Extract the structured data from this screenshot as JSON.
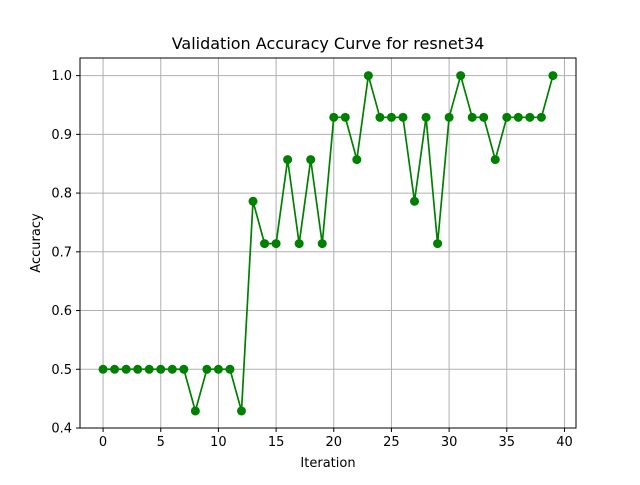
{
  "chart_data": {
    "type": "line",
    "title": "Validation Accuracy Curve for resnet34",
    "xlabel": "Iteration",
    "ylabel": "Accuracy",
    "xlim": [
      -2.0,
      41.0
    ],
    "ylim": [
      0.4,
      1.03
    ],
    "xticks": [
      0,
      5,
      10,
      15,
      20,
      25,
      30,
      35,
      40
    ],
    "yticks": [
      0.4,
      0.5,
      0.6,
      0.7,
      0.8,
      0.9,
      1.0
    ],
    "xtick_labels": [
      "0",
      "5",
      "10",
      "15",
      "20",
      "25",
      "30",
      "35",
      "40"
    ],
    "ytick_labels": [
      "0.4",
      "0.5",
      "0.6",
      "0.7",
      "0.8",
      "0.9",
      "1.0"
    ],
    "grid": true,
    "marker": "circle",
    "color": "#008000",
    "series": [
      {
        "x": [
          0,
          1,
          2,
          3,
          4,
          5,
          6,
          7,
          8,
          9,
          10,
          11,
          12,
          13,
          14,
          15,
          16,
          17,
          18,
          19,
          20,
          21,
          22,
          23,
          24,
          25,
          26,
          27,
          28,
          29,
          30,
          31,
          32,
          33,
          34,
          35,
          36,
          37,
          38,
          39
        ],
        "values": [
          0.5,
          0.5,
          0.5,
          0.5,
          0.5,
          0.5,
          0.5,
          0.5,
          0.429,
          0.5,
          0.5,
          0.5,
          0.429,
          0.786,
          0.714,
          0.714,
          0.857,
          0.714,
          0.857,
          0.714,
          0.929,
          0.929,
          0.857,
          1.0,
          0.929,
          0.929,
          0.929,
          0.786,
          0.929,
          0.714,
          0.929,
          1.0,
          0.929,
          0.929,
          0.857,
          0.929,
          0.929,
          0.929,
          0.929,
          1.0
        ]
      }
    ]
  }
}
